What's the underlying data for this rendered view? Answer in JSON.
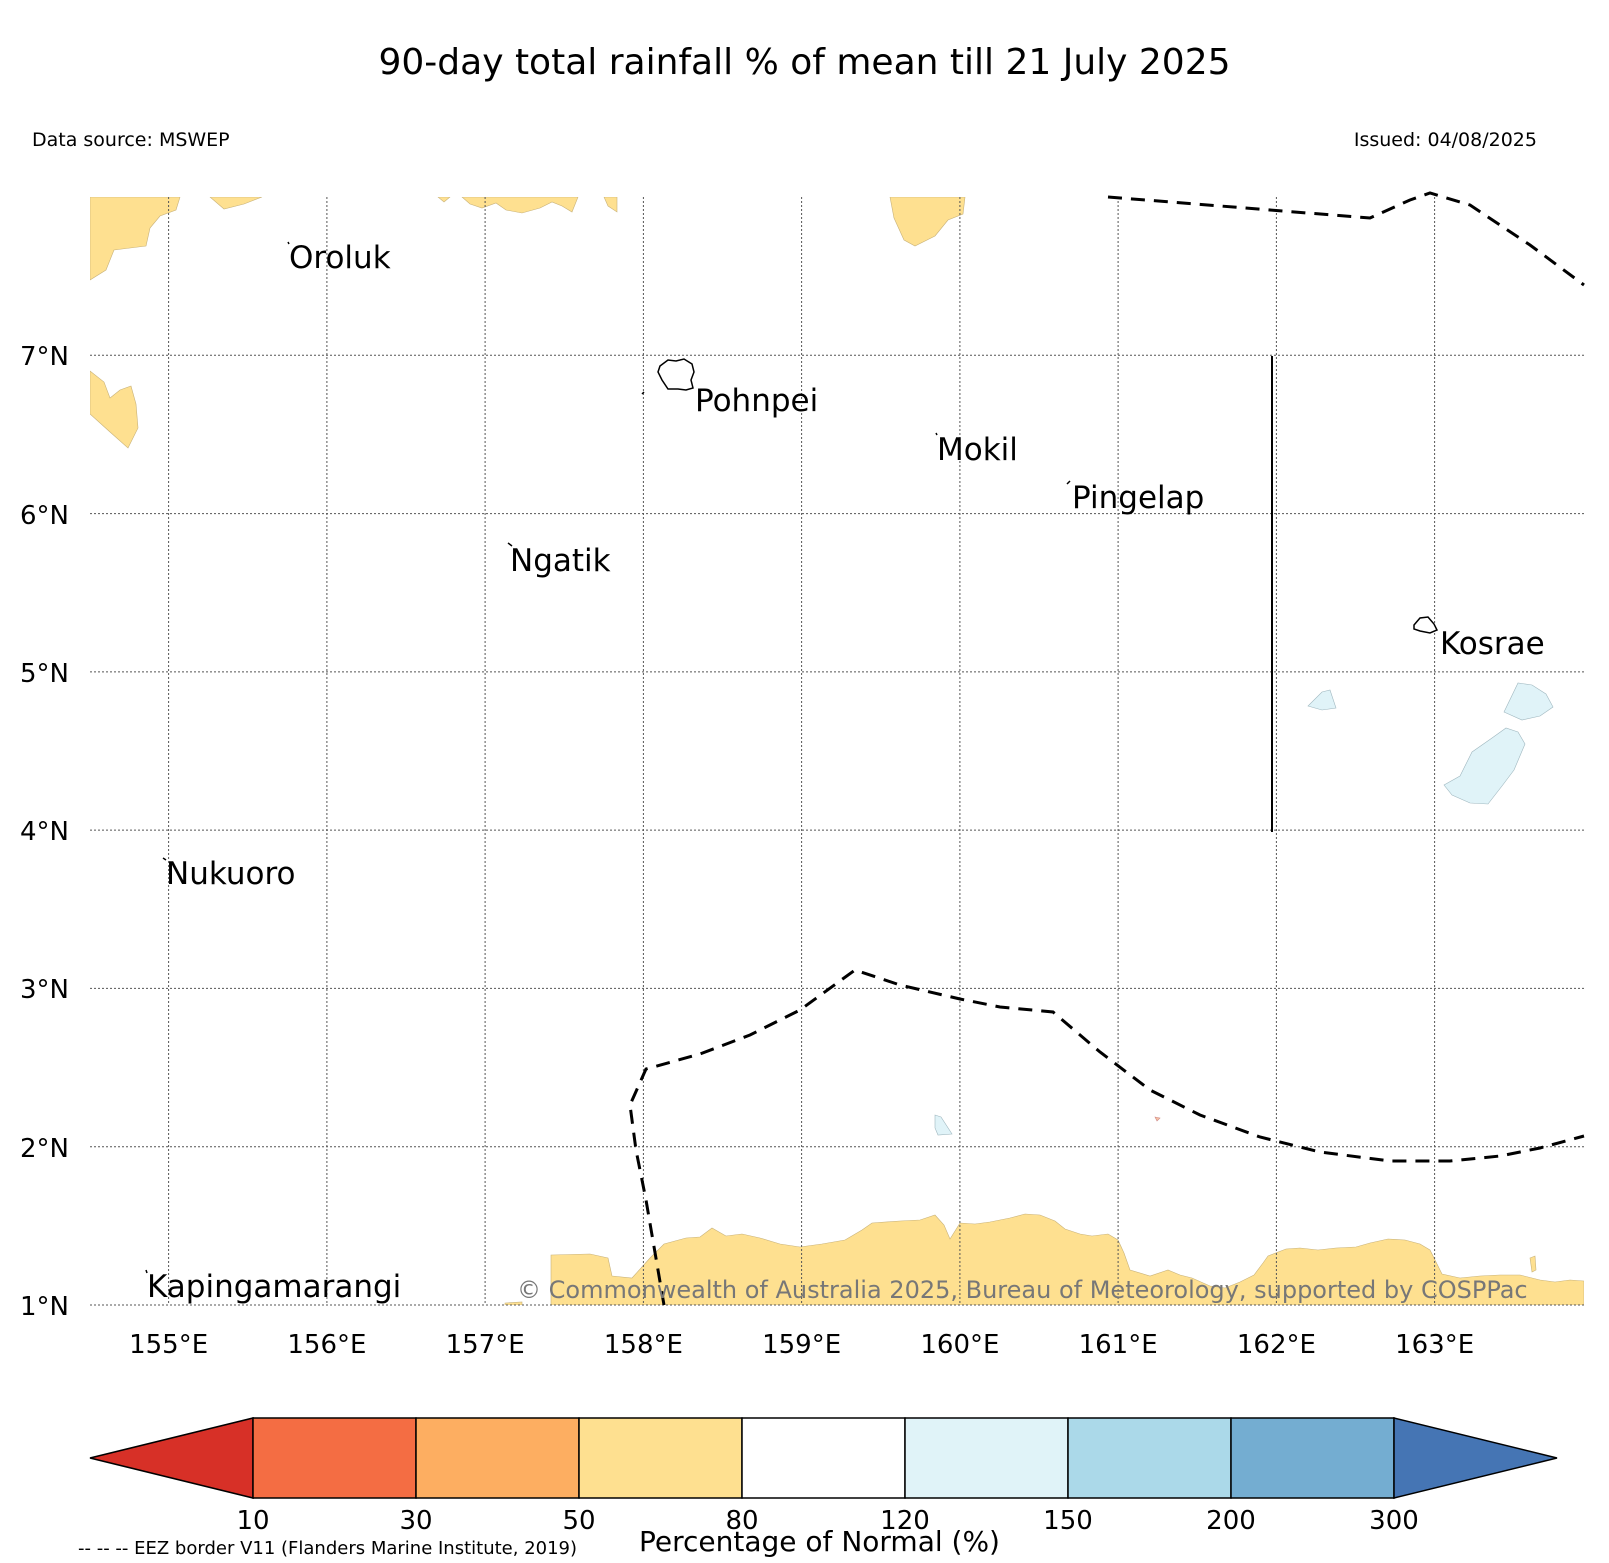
{
  "header": {
    "title": "90-day total rainfall % of mean till 21 July 2025",
    "source": "Data source: MSWEP",
    "issued": "Issued: 04/08/2025"
  },
  "map": {
    "lon_range": [
      154.5,
      164.0
    ],
    "lat_range": [
      1.0,
      8.0
    ],
    "lat_labels": [
      "7°N",
      "6°N",
      "5°N",
      "4°N",
      "3°N",
      "2°N",
      "1°N"
    ],
    "lon_labels": [
      "155°E",
      "156°E",
      "157°E",
      "158°E",
      "159°E",
      "160°E",
      "161°E",
      "162°E",
      "163°E"
    ],
    "places": [
      {
        "name": "Oroluk"
      },
      {
        "name": "Pohnpei"
      },
      {
        "name": "Mokil"
      },
      {
        "name": "Pingelap"
      },
      {
        "name": "Ngatik"
      },
      {
        "name": "Kosrae"
      },
      {
        "name": "Nukuoro"
      },
      {
        "name": "Kapingamarangi"
      }
    ],
    "copyright": "© Commonwealth of Australia 2025, Bureau of Meteorology, supported by COSPPac",
    "gridlines": true
  },
  "colorbar": {
    "title": "Percentage of Normal (%)",
    "ticks": [
      "10",
      "30",
      "50",
      "80",
      "120",
      "150",
      "200",
      "300"
    ],
    "colors": [
      "#d73027",
      "#f46d43",
      "#fdae61",
      "#fee090",
      "#ffffff",
      "#e0f3f8",
      "#abd9e9",
      "#74add1",
      "#4575b4"
    ]
  },
  "footer": {
    "eez_note": "-- -- -- EEZ border V11 (Flanders Marine Institute, 2019)"
  }
}
